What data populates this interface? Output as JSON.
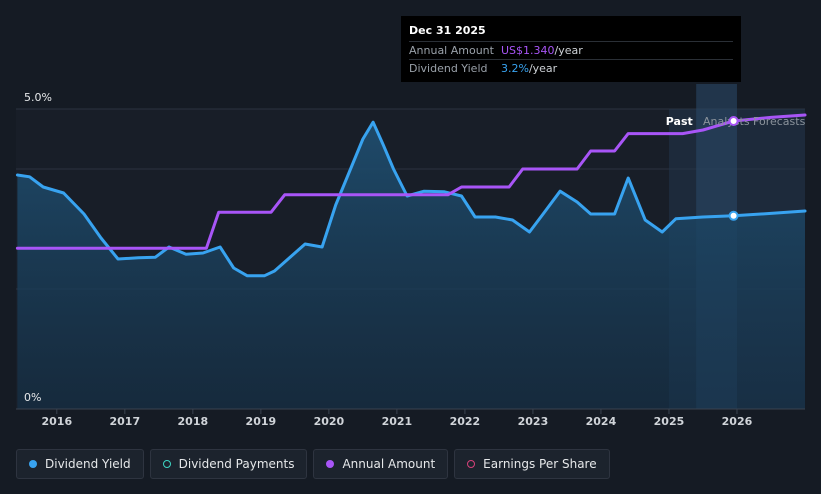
{
  "tooltip": {
    "date": "Dec 31 2025",
    "rows": [
      {
        "label": "Annual Amount",
        "value": "US$1.340",
        "unit": "/year"
      },
      {
        "label": "Dividend Yield",
        "value": "3.2%",
        "unit": "/year"
      }
    ]
  },
  "legend": [
    {
      "label": "Dividend Yield",
      "color": "#38a3f0",
      "filled": true
    },
    {
      "label": "Dividend Payments",
      "color": "#3dd6c4",
      "filled": false
    },
    {
      "label": "Annual Amount",
      "color": "#a855f7",
      "filled": true
    },
    {
      "label": "Earnings Per Share",
      "color": "#d6427a",
      "filled": false
    }
  ],
  "chart_data": {
    "type": "line",
    "title": "",
    "xlabel": "",
    "ylabel": "",
    "y_tick_labels": [
      "5.0%",
      "0%"
    ],
    "x_tick_labels": [
      "2016",
      "2017",
      "2018",
      "2019",
      "2020",
      "2021",
      "2022",
      "2023",
      "2024",
      "2025",
      "2026"
    ],
    "xlim": [
      2015.4,
      2027.0
    ],
    "ylim": [
      0,
      5.0
    ],
    "region_labels": {
      "past": "Past",
      "forecast": "Analysts Forecasts"
    },
    "forecast_start": 2025.0,
    "series": [
      {
        "name": "Dividend Yield",
        "color": "#38a3f0",
        "unit": "%",
        "points": [
          [
            2015.42,
            3.9
          ],
          [
            2015.6,
            3.87
          ],
          [
            2015.8,
            3.7
          ],
          [
            2016.1,
            3.6
          ],
          [
            2016.4,
            3.25
          ],
          [
            2016.65,
            2.85
          ],
          [
            2016.9,
            2.5
          ],
          [
            2017.2,
            2.52
          ],
          [
            2017.45,
            2.53
          ],
          [
            2017.65,
            2.7
          ],
          [
            2017.9,
            2.58
          ],
          [
            2018.15,
            2.6
          ],
          [
            2018.4,
            2.7
          ],
          [
            2018.6,
            2.35
          ],
          [
            2018.8,
            2.22
          ],
          [
            2019.05,
            2.22
          ],
          [
            2019.2,
            2.3
          ],
          [
            2019.45,
            2.55
          ],
          [
            2019.65,
            2.75
          ],
          [
            2019.9,
            2.7
          ],
          [
            2020.1,
            3.4
          ],
          [
            2020.3,
            3.95
          ],
          [
            2020.5,
            4.5
          ],
          [
            2020.65,
            4.78
          ],
          [
            2020.8,
            4.4
          ],
          [
            2020.95,
            4.0
          ],
          [
            2021.15,
            3.55
          ],
          [
            2021.4,
            3.63
          ],
          [
            2021.7,
            3.62
          ],
          [
            2021.95,
            3.55
          ],
          [
            2022.15,
            3.2
          ],
          [
            2022.45,
            3.2
          ],
          [
            2022.7,
            3.15
          ],
          [
            2022.95,
            2.95
          ],
          [
            2023.15,
            3.25
          ],
          [
            2023.4,
            3.63
          ],
          [
            2023.65,
            3.45
          ],
          [
            2023.85,
            3.25
          ],
          [
            2024.2,
            3.25
          ],
          [
            2024.4,
            3.85
          ],
          [
            2024.65,
            3.15
          ],
          [
            2024.9,
            2.95
          ],
          [
            2025.1,
            3.17
          ],
          [
            2025.5,
            3.2
          ],
          [
            2025.95,
            3.22
          ],
          [
            2026.5,
            3.26
          ],
          [
            2027.0,
            3.3
          ]
        ]
      },
      {
        "name": "Annual Amount",
        "color": "#a855f7",
        "unit": "US$/year",
        "points": [
          [
            2015.42,
            2.68
          ],
          [
            2018.2,
            2.68
          ],
          [
            2018.38,
            3.28
          ],
          [
            2019.15,
            3.28
          ],
          [
            2019.35,
            3.57
          ],
          [
            2021.75,
            3.57
          ],
          [
            2021.95,
            3.7
          ],
          [
            2022.65,
            3.7
          ],
          [
            2022.85,
            4.0
          ],
          [
            2023.65,
            4.0
          ],
          [
            2023.85,
            4.3
          ],
          [
            2024.2,
            4.3
          ],
          [
            2024.4,
            4.59
          ],
          [
            2025.2,
            4.59
          ],
          [
            2025.5,
            4.65
          ],
          [
            2025.95,
            4.8
          ],
          [
            2026.5,
            4.86
          ],
          [
            2027.0,
            4.9
          ]
        ]
      }
    ]
  }
}
